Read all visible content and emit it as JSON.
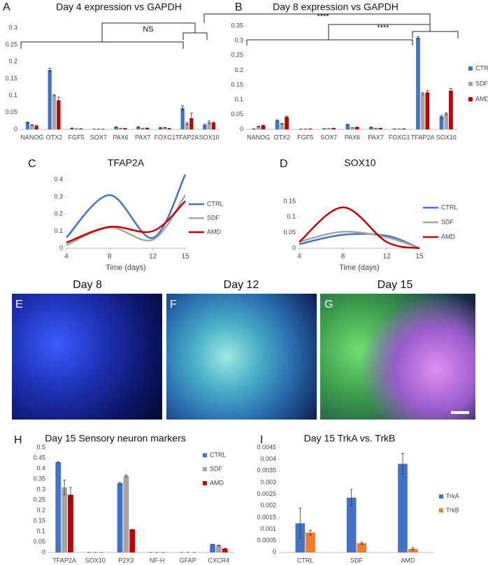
{
  "chart_data": [
    {
      "type": "bar",
      "panel": "A",
      "title": "Day 4 expression vs GAPDH",
      "categories": [
        "NANOG",
        "OTX2",
        "FGF5",
        "SOX7",
        "PAX6",
        "PAX7",
        "FOXG1",
        "TFAP2A",
        "SOX10"
      ],
      "series": [
        {
          "name": "CTRL",
          "color": "#4472c4",
          "values": [
            0.021,
            0.176,
            0.003,
            0.001,
            0.007,
            0.007,
            0.005,
            0.063,
            0.013
          ],
          "errors": [
            0.001,
            0.005,
            0.001,
            0,
            0.001,
            0.001,
            0.001,
            0.007,
            0.003
          ]
        },
        {
          "name": "SDF",
          "color": "#a5a5a5",
          "values": [
            0.013,
            0.101,
            0.002,
            0.001,
            0.003,
            0.003,
            0.005,
            0.018,
            0.021
          ],
          "errors": [
            0.001,
            0.002,
            0,
            0,
            0,
            0,
            0.001,
            0.003,
            0.004
          ]
        },
        {
          "name": "AMD",
          "color": "#c00000",
          "values": [
            0.01,
            0.086,
            0.002,
            0.001,
            0.003,
            0.004,
            0.003,
            0.033,
            0.02
          ],
          "errors": [
            0.002,
            0.009,
            0,
            0,
            0,
            0,
            0,
            0.015,
            0.002
          ]
        }
      ],
      "ylim": [
        0,
        0.3
      ],
      "yticks": [
        0,
        0.05,
        0.1,
        0.15,
        0.2,
        0.25,
        0.3
      ],
      "legend": false,
      "annotations": [
        "NS"
      ]
    },
    {
      "type": "bar",
      "panel": "B",
      "title": "Day 8 expression vs GAPDH",
      "categories": [
        "NANOG",
        "OTX2",
        "FGF5",
        "SOX7",
        "PAX6",
        "PAX7",
        "FOXG1",
        "TFAP2A",
        "SOX10"
      ],
      "series": [
        {
          "name": "CTRL",
          "color": "#4472c4",
          "values": [
            0.002,
            0.03,
            0.001,
            0.003,
            0.016,
            0.007,
            0.002,
            0.31,
            0.043
          ],
          "errors": [
            0,
            0.002,
            0,
            0,
            0.001,
            0.001,
            0,
            0.003,
            0.003
          ]
        },
        {
          "name": "SDF",
          "color": "#a5a5a5",
          "values": [
            0.01,
            0.019,
            0.001,
            0.003,
            0.006,
            0.004,
            0.002,
            0.121,
            0.053
          ],
          "errors": [
            0.001,
            0.001,
            0,
            0,
            0,
            0,
            0,
            0.003,
            0.003
          ]
        },
        {
          "name": "AMD",
          "color": "#c00000",
          "values": [
            0.013,
            0.042,
            0.002,
            0.004,
            0.008,
            0.004,
            0.002,
            0.125,
            0.131
          ],
          "errors": [
            0.001,
            0.003,
            0,
            0,
            0,
            0,
            0,
            0.006,
            0.007
          ]
        }
      ],
      "ylim": [
        0,
        0.35
      ],
      "yticks": [
        0,
        0.05,
        0.1,
        0.15,
        0.2,
        0.25,
        0.3,
        0.35
      ],
      "legend": true,
      "annotations": [
        "****",
        "****"
      ]
    },
    {
      "type": "line",
      "panel": "C",
      "title": "TFAP2A",
      "xlabel": "Time (days)",
      "x": [
        4,
        8,
        12,
        15
      ],
      "xlim": [
        4,
        15
      ],
      "xticks": [
        4,
        8,
        12,
        15
      ],
      "series": [
        {
          "name": "CTRL",
          "color": "#4472c4",
          "values": [
            0.063,
            0.31,
            0.06,
            0.43
          ]
        },
        {
          "name": "SDF",
          "color": "#a5a5a5",
          "values": [
            0.018,
            0.121,
            0.05,
            0.31
          ]
        },
        {
          "name": "AMD",
          "color": "#c00000",
          "values": [
            0.033,
            0.125,
            0.1,
            0.275
          ]
        }
      ],
      "ylim": [
        0,
        0.4
      ],
      "yticks": [
        0,
        0.1,
        0.2,
        0.3,
        0.4
      ],
      "legend": true
    },
    {
      "type": "line",
      "panel": "D",
      "title": "SOX10",
      "xlabel": "Time (days)",
      "x": [
        4,
        8,
        12,
        15
      ],
      "xlim": [
        4,
        15
      ],
      "xticks": [
        4,
        8,
        12,
        15
      ],
      "series": [
        {
          "name": "CTRL",
          "color": "#4472c4",
          "values": [
            0.013,
            0.043,
            0.04,
            0
          ]
        },
        {
          "name": "SDF",
          "color": "#a5a5a5",
          "values": [
            0.021,
            0.053,
            0.035,
            0
          ]
        },
        {
          "name": "AMD",
          "color": "#c00000",
          "values": [
            0.02,
            0.131,
            0.02,
            0
          ]
        }
      ],
      "ylim": [
        0,
        0.15
      ],
      "yticks": [
        0,
        0.05,
        0.1,
        0.15
      ],
      "legend": true
    },
    {
      "type": "bar",
      "panel": "H",
      "title": "Day 15 Sensory neuron markers",
      "categories": [
        "TFAP2A",
        "SOX10",
        "P2X3",
        "NF-H",
        "GFAP",
        "CXCR4"
      ],
      "series": [
        {
          "name": "CTRL",
          "color": "#4472c4",
          "values": [
            0.43,
            0,
            0.33,
            0,
            0,
            0.038
          ],
          "errors": [
            0.002,
            0,
            0.005,
            0,
            0,
            0.001
          ]
        },
        {
          "name": "SDF",
          "color": "#a5a5a5",
          "values": [
            0.31,
            0,
            0.365,
            0,
            0,
            0.033
          ],
          "errors": [
            0.035,
            0,
            0.005,
            0,
            0,
            0.002
          ]
        },
        {
          "name": "AMD",
          "color": "#c00000",
          "values": [
            0.275,
            0,
            0.11,
            0,
            0,
            0.018
          ],
          "errors": [
            0.035,
            0,
            0,
            0,
            0,
            0.002
          ]
        }
      ],
      "ylim": [
        0,
        0.5
      ],
      "yticks": [
        0,
        0.05,
        0.1,
        0.15,
        0.2,
        0.25,
        0.3,
        0.35,
        0.4,
        0.45,
        0.5
      ],
      "legend": true
    },
    {
      "type": "bar",
      "panel": "I",
      "title": "Day 15 TrkA vs. TrkB",
      "categories": [
        "CTRL",
        "SDF",
        "AMD"
      ],
      "series": [
        {
          "name": "TrkA",
          "color": "#4472c4",
          "values": [
            0.00125,
            0.00235,
            0.0038
          ],
          "errors": [
            0.00065,
            0.00035,
            0.00045
          ]
        },
        {
          "name": "TrkB",
          "color": "#ed7d31",
          "values": [
            0.00085,
            0.0004,
            0.00015
          ],
          "errors": [
            0.0001,
            5e-05,
            5e-05
          ]
        }
      ],
      "ylim": [
        0,
        0.0045
      ],
      "yticks": [
        0,
        0.0005,
        0.001,
        0.0015,
        0.002,
        0.0025,
        0.003,
        0.0035,
        0.004,
        0.0045
      ],
      "legend": true
    }
  ],
  "images": [
    {
      "panel": "E",
      "title": "Day 8"
    },
    {
      "panel": "F",
      "title": "Day 12"
    },
    {
      "panel": "G",
      "title": "Day 15"
    }
  ]
}
